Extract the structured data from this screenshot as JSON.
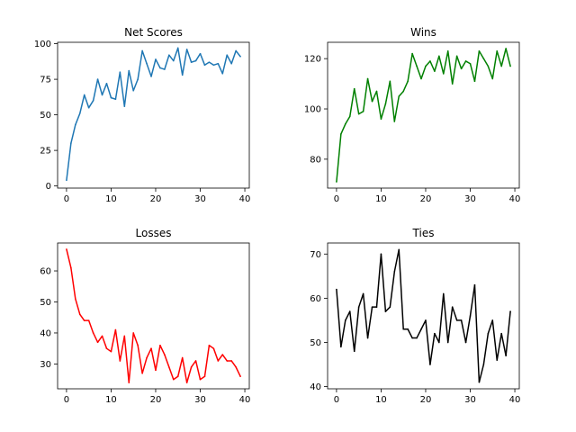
{
  "chart_data": [
    {
      "type": "line",
      "title": "Net Scores",
      "xlabel": "",
      "ylabel": "",
      "color": "#1f77b4",
      "xlim": [
        -2,
        41
      ],
      "ylim": [
        -1.5,
        101
      ],
      "xticks": [
        0,
        10,
        20,
        30,
        40
      ],
      "yticks": [
        0,
        25,
        50,
        75,
        100
      ],
      "x": [
        0,
        1,
        2,
        3,
        4,
        5,
        6,
        7,
        8,
        9,
        10,
        11,
        12,
        13,
        14,
        15,
        16,
        17,
        18,
        19,
        20,
        21,
        22,
        23,
        24,
        25,
        26,
        27,
        28,
        29,
        30,
        31,
        32,
        33,
        34,
        35,
        36,
        37,
        38,
        39
      ],
      "values": [
        4,
        30,
        43,
        51,
        64,
        55,
        60,
        75,
        64,
        72,
        62,
        61,
        80,
        56,
        81,
        67,
        75,
        95,
        86,
        77,
        89,
        83,
        82,
        92,
        88,
        97,
        78,
        96,
        87,
        88,
        93,
        85,
        87,
        85,
        86,
        79,
        92,
        86,
        95,
        91
      ]
    },
    {
      "type": "line",
      "title": "Wins",
      "xlabel": "",
      "ylabel": "",
      "color": "#008000",
      "xlim": [
        -2,
        41
      ],
      "ylim": [
        68.5,
        126.5
      ],
      "xticks": [
        0,
        10,
        20,
        30,
        40
      ],
      "yticks": [
        80,
        100,
        120
      ],
      "x": [
        0,
        1,
        2,
        3,
        4,
        5,
        6,
        7,
        8,
        9,
        10,
        11,
        12,
        13,
        14,
        15,
        16,
        17,
        18,
        19,
        20,
        21,
        22,
        23,
        24,
        25,
        26,
        27,
        28,
        29,
        30,
        31,
        32,
        33,
        34,
        35,
        36,
        37,
        38,
        39
      ],
      "values": [
        71,
        90,
        94,
        97,
        108,
        98,
        99,
        112,
        103,
        107,
        96,
        102,
        111,
        95,
        105,
        107,
        111,
        122,
        117,
        112,
        117,
        119,
        115,
        121,
        114,
        123,
        110,
        121,
        116,
        119,
        118,
        111,
        123,
        120,
        117,
        112,
        123,
        117,
        124,
        117
      ]
    },
    {
      "type": "line",
      "title": "Losses",
      "xlabel": "",
      "ylabel": "",
      "color": "#ff0000",
      "xlim": [
        -2,
        41
      ],
      "ylim": [
        22,
        69
      ],
      "xticks": [
        0,
        10,
        20,
        30,
        40
      ],
      "yticks": [
        30,
        40,
        50,
        60
      ],
      "x": [
        0,
        1,
        2,
        3,
        4,
        5,
        6,
        7,
        8,
        9,
        10,
        11,
        12,
        13,
        14,
        15,
        16,
        17,
        18,
        19,
        20,
        21,
        22,
        23,
        24,
        25,
        26,
        27,
        28,
        29,
        30,
        31,
        32,
        33,
        34,
        35,
        36,
        37,
        38,
        39
      ],
      "values": [
        67,
        61,
        51,
        46,
        44,
        44,
        40,
        37,
        39,
        35,
        34,
        41,
        31,
        39,
        24,
        40,
        36,
        27,
        32,
        35,
        28,
        36,
        33,
        29,
        25,
        26,
        32,
        24,
        29,
        31,
        25,
        26,
        36,
        35,
        31,
        33,
        31,
        31,
        29,
        26
      ]
    },
    {
      "type": "line",
      "title": "Ties",
      "xlabel": "",
      "ylabel": "",
      "color": "#000000",
      "xlim": [
        -2,
        41
      ],
      "ylim": [
        39.5,
        72.5
      ],
      "xticks": [
        0,
        10,
        20,
        30,
        40
      ],
      "yticks": [
        40,
        50,
        60,
        70
      ],
      "x": [
        0,
        1,
        2,
        3,
        4,
        5,
        6,
        7,
        8,
        9,
        10,
        11,
        12,
        13,
        14,
        15,
        16,
        17,
        18,
        19,
        20,
        21,
        22,
        23,
        24,
        25,
        26,
        27,
        28,
        29,
        30,
        31,
        32,
        33,
        34,
        35,
        36,
        37,
        38,
        39
      ],
      "values": [
        62,
        49,
        55,
        57,
        48,
        58,
        61,
        51,
        58,
        58,
        70,
        57,
        58,
        66,
        71,
        53,
        53,
        51,
        51,
        53,
        55,
        45,
        52,
        50,
        61,
        50,
        58,
        55,
        55,
        50,
        56,
        63,
        41,
        45,
        52,
        55,
        46,
        52,
        47,
        57
      ]
    }
  ]
}
